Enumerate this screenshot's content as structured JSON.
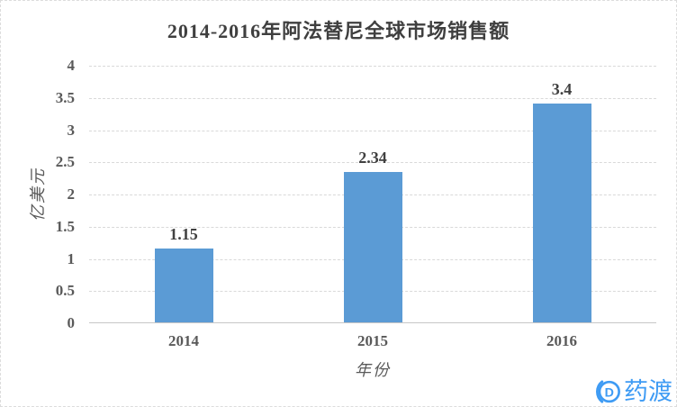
{
  "chart_data": {
    "type": "bar",
    "title": "2014-2016年阿法替尼全球市场销售额",
    "categories": [
      "2014",
      "2015",
      "2016"
    ],
    "values": [
      1.15,
      2.34,
      3.4
    ],
    "value_labels": [
      "1.15",
      "2.34",
      "3.4"
    ],
    "xlabel": "年份",
    "ylabel": "亿美元",
    "ylim": [
      0,
      4
    ],
    "yticks": [
      "0",
      "0.5",
      "1",
      "1.5",
      "2",
      "2.5",
      "3",
      "3.5",
      "4"
    ],
    "grid": true,
    "legend": "none",
    "bar_color": "#5B9BD5",
    "gridline_color": "#D9D9D9",
    "axis_line_color": "#C6C6C6",
    "title_color": "#3F3F3F",
    "tick_color": "#595959",
    "label_color": "#404040"
  },
  "watermark": {
    "icon": "pharmacodia-d-circle-logo",
    "text": "药渡",
    "color": "#3E9BF4"
  }
}
